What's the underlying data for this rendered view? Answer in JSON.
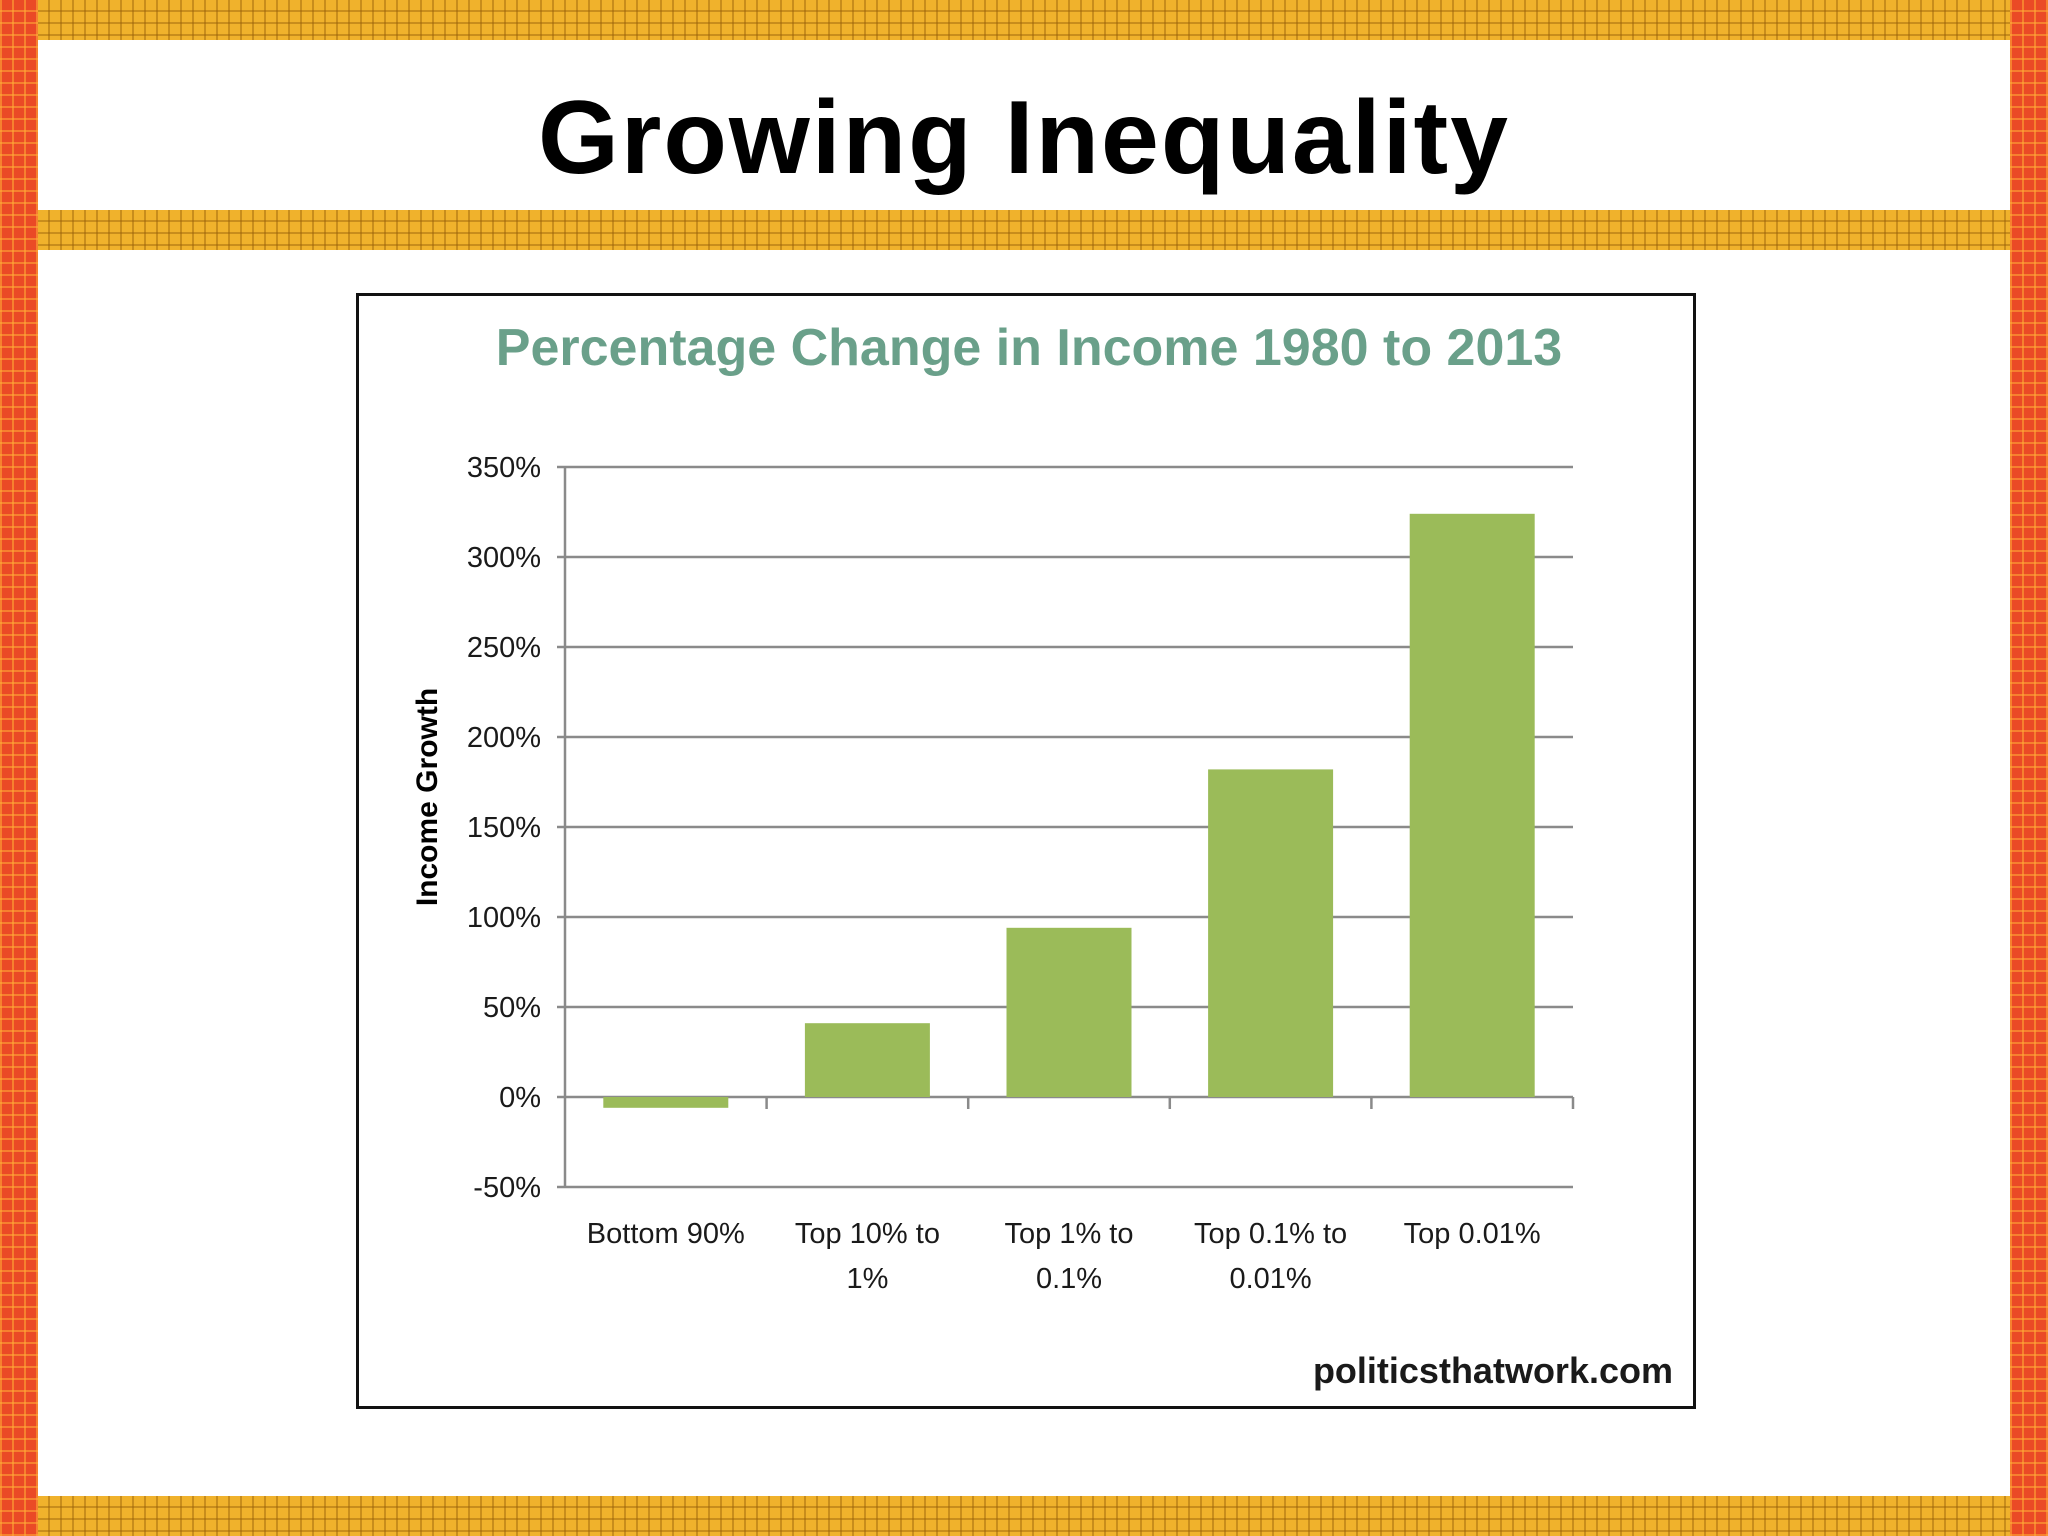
{
  "slide": {
    "title": "Growing Inequality"
  },
  "chart_data": {
    "type": "bar",
    "title": "Percentage Change in Income 1980 to 2013",
    "ylabel": "Income Growth",
    "xlabel": "",
    "categories": [
      [
        "Bottom 90%"
      ],
      [
        "Top 10% to",
        "1%"
      ],
      [
        "Top 1% to",
        "0.1%"
      ],
      [
        "Top 0.1% to",
        "0.01%"
      ],
      [
        "Top 0.01%"
      ]
    ],
    "values": [
      -6,
      41,
      94,
      182,
      324
    ],
    "ylim": [
      -50,
      350
    ],
    "yticks": [
      -50,
      0,
      50,
      100,
      150,
      200,
      250,
      300,
      350
    ],
    "ytick_suffix": "%",
    "grid": true,
    "legend": "none",
    "bar_color": "#9bbb59",
    "source": "politicsthatwork.com"
  }
}
